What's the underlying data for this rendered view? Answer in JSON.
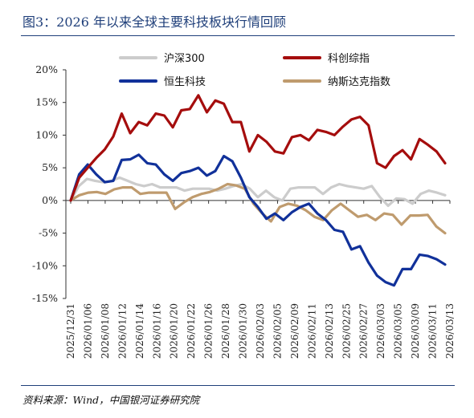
{
  "header": {
    "title": "图3：2026 年以来全球主要科技板块行情回顾"
  },
  "footer": {
    "source": "资料来源：Wind，中国银河证券研究院"
  },
  "chart_data": {
    "type": "line",
    "title": "图3：2026 年以来全球主要科技板块行情回顾",
    "xlabel": "",
    "ylabel": "",
    "ylim": [
      -0.15,
      0.2
    ],
    "yticks": [
      -0.15,
      -0.1,
      -0.05,
      0,
      0.05,
      0.1,
      0.15,
      0.2
    ],
    "ytick_labels": [
      "-15%",
      "-10%",
      "-5%",
      "0%",
      "5%",
      "10%",
      "15%",
      "20%"
    ],
    "xtick_labels": [
      "2025/12/31",
      "2026/01/06",
      "2026/01/08",
      "2026/01/12",
      "2026/01/14",
      "2026/01/16",
      "2026/01/20",
      "2026/01/22",
      "2026/01/26",
      "2026/01/28",
      "2026/01/30",
      "2026/02/03",
      "2026/02/05",
      "2026/02/09",
      "2026/02/11",
      "2026/02/13",
      "2026/02/25",
      "2026/02/27",
      "2026/03/03",
      "2026/03/05",
      "2026/03/09",
      "2026/03/11",
      "2026/03/13"
    ],
    "legend_position": "top",
    "grid": false,
    "series": [
      {
        "name": "沪深300",
        "color": "#cccccc",
        "values": [
          0,
          0.022,
          0.033,
          0.03,
          0.028,
          0.03,
          0.035,
          0.03,
          0.025,
          0.022,
          0.025,
          0.02,
          0.02,
          0.02,
          0.015,
          0.018,
          0.018,
          0.018,
          0.015,
          0.018,
          0.022,
          0.025,
          0.018,
          0.005,
          0.015,
          0.005,
          0.0,
          0.018,
          0.02,
          0.02,
          0.02,
          0.01,
          0.02,
          0.025,
          0.022,
          0.02,
          0.018,
          0.022,
          0.005,
          -0.008,
          0.003,
          0.002,
          -0.005,
          0.01,
          0.015,
          0.012,
          0.008
        ]
      },
      {
        "name": "科创综指",
        "color": "#a50d0d",
        "values": [
          0,
          0.035,
          0.05,
          0.065,
          0.078,
          0.098,
          0.133,
          0.103,
          0.12,
          0.115,
          0.133,
          0.13,
          0.112,
          0.138,
          0.14,
          0.161,
          0.135,
          0.153,
          0.148,
          0.12,
          0.12,
          0.075,
          0.1,
          0.09,
          0.075,
          0.072,
          0.097,
          0.1,
          0.092,
          0.108,
          0.105,
          0.1,
          0.113,
          0.124,
          0.128,
          0.115,
          0.057,
          0.05,
          0.068,
          0.077,
          0.063,
          0.094,
          0.085,
          0.075,
          0.057
        ]
      },
      {
        "name": "恒生科技",
        "color": "#11319a",
        "values": [
          0,
          0.04,
          0.055,
          0.04,
          0.028,
          0.03,
          0.062,
          0.063,
          0.07,
          0.057,
          0.055,
          0.04,
          0.03,
          0.042,
          0.045,
          0.05,
          0.038,
          0.045,
          0.068,
          0.06,
          0.035,
          0.005,
          -0.01,
          -0.028,
          -0.02,
          -0.03,
          -0.018,
          -0.01,
          -0.005,
          -0.02,
          -0.03,
          -0.045,
          -0.048,
          -0.075,
          -0.07,
          -0.095,
          -0.115,
          -0.125,
          -0.13,
          -0.105,
          -0.105,
          -0.083,
          -0.085,
          -0.09,
          -0.098
        ]
      },
      {
        "name": "纳斯达克指数",
        "color": "#bf9b6e",
        "values": [
          0,
          0.008,
          0.012,
          0.013,
          0.01,
          0.017,
          0.02,
          0.02,
          0.01,
          0.012,
          0.012,
          0.012,
          -0.013,
          -0.003,
          0.005,
          0.01,
          0.013,
          0.018,
          0.025,
          0.023,
          0.018,
          -0.005,
          -0.02,
          -0.032,
          -0.01,
          -0.005,
          -0.008,
          -0.015,
          -0.025,
          -0.03,
          -0.015,
          -0.005,
          -0.015,
          -0.025,
          -0.022,
          -0.03,
          -0.02,
          -0.022,
          -0.037,
          -0.023,
          -0.023,
          -0.022,
          -0.04,
          -0.05
        ]
      }
    ]
  }
}
